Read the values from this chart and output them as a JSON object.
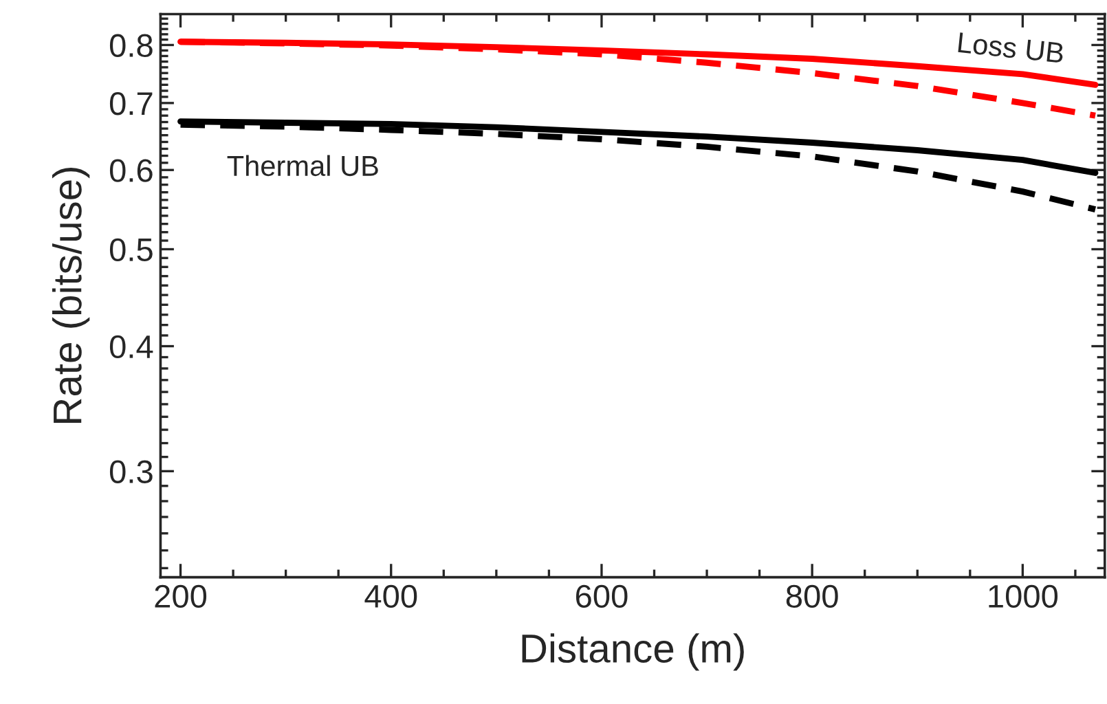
{
  "chart_data": {
    "type": "line",
    "xlabel": "Distance (m)",
    "ylabel": "Rate (bits/use)",
    "log": "y",
    "xlim": [
      181,
      1078
    ],
    "ylim": [
      0.235,
      0.859
    ],
    "xticks": [
      200,
      400,
      600,
      800,
      1000
    ],
    "yticks": [
      {
        "value": 0.3,
        "label": "0.3"
      },
      {
        "value": 0.4,
        "label": "0.4"
      },
      {
        "value": 0.5,
        "label": "0.5"
      },
      {
        "value": 0.6,
        "label": "0.6"
      },
      {
        "value": 0.7,
        "label": "0.7"
      },
      {
        "value": 0.8,
        "label": "0.8"
      }
    ],
    "grid": false,
    "legend": false,
    "marker": "none",
    "x": [
      200,
      300,
      400,
      500,
      600,
      700,
      800,
      900,
      1000,
      1069
    ],
    "series": [
      {
        "color": "#ff0000",
        "line_style": "solid",
        "values": [
          0.806,
          0.804,
          0.801,
          0.796,
          0.79,
          0.783,
          0.775,
          0.762,
          0.748,
          0.73
        ]
      },
      {
        "color": "#ff0000",
        "line_style": "dashed",
        "values": [
          0.806,
          0.803,
          0.799,
          0.792,
          0.783,
          0.768,
          0.75,
          0.728,
          0.7,
          0.68
        ]
      },
      {
        "color": "#000000",
        "line_style": "solid",
        "values": [
          0.671,
          0.669,
          0.667,
          0.662,
          0.655,
          0.648,
          0.639,
          0.628,
          0.614,
          0.596
        ]
      },
      {
        "color": "#000000",
        "line_style": "dashed",
        "values": [
          0.666,
          0.663,
          0.658,
          0.652,
          0.644,
          0.633,
          0.619,
          0.598,
          0.571,
          0.548
        ]
      }
    ],
    "annotations": [
      "Loss UB",
      "Thermal UB"
    ]
  }
}
